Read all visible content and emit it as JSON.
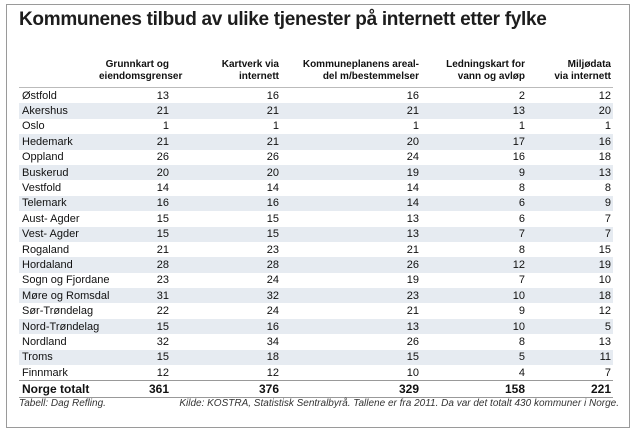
{
  "header": {
    "title": "Kommunenes tilbud av ulike tjenester på internett etter fylke"
  },
  "table": {
    "columns": [
      [
        "Grunnkart og",
        "eiendomsgrenser"
      ],
      [
        "Kartverk via",
        "internett"
      ],
      [
        "Kommuneplanens areal-",
        "del m/bestemmelser"
      ],
      [
        "Ledningskart for",
        "vann og avløp"
      ],
      [
        "Miljødata",
        "via internett"
      ]
    ],
    "rows": [
      [
        "Østfold",
        13,
        16,
        16,
        2,
        12
      ],
      [
        "Akershus",
        21,
        21,
        21,
        13,
        20
      ],
      [
        "Oslo",
        1,
        1,
        1,
        1,
        1
      ],
      [
        "Hedemark",
        21,
        21,
        20,
        17,
        16
      ],
      [
        "Oppland",
        26,
        26,
        24,
        16,
        18
      ],
      [
        "Buskerud",
        20,
        20,
        19,
        9,
        13
      ],
      [
        "Vestfold",
        14,
        14,
        14,
        8,
        8
      ],
      [
        "Telemark",
        16,
        16,
        14,
        6,
        9
      ],
      [
        "Aust- Agder",
        15,
        15,
        13,
        6,
        7
      ],
      [
        "Vest- Agder",
        15,
        15,
        13,
        7,
        7
      ],
      [
        "Rogaland",
        21,
        23,
        21,
        8,
        15
      ],
      [
        "Hordaland",
        28,
        28,
        26,
        12,
        19
      ],
      [
        "Sogn og Fjordane",
        23,
        24,
        19,
        7,
        10
      ],
      [
        "Møre og Romsdal",
        31,
        32,
        23,
        10,
        18
      ],
      [
        "Sør-Trøndelag",
        22,
        24,
        21,
        9,
        12
      ],
      [
        "Nord-Trøndelag",
        15,
        16,
        13,
        10,
        5
      ],
      [
        "Nordland",
        32,
        34,
        26,
        8,
        13
      ],
      [
        "Troms",
        15,
        18,
        15,
        5,
        11
      ],
      [
        "Finnmark",
        12,
        12,
        10,
        4,
        7
      ]
    ],
    "total": [
      "Norge totalt",
      361,
      376,
      329,
      158,
      221
    ]
  },
  "footer": {
    "credit": "Tabell: Dag Refling.",
    "source": "Kilde: KOSTRA, Statistisk Sentralbyrå. Tallene er fra 2011. Da var det totalt 430 kommuner i Norge."
  }
}
